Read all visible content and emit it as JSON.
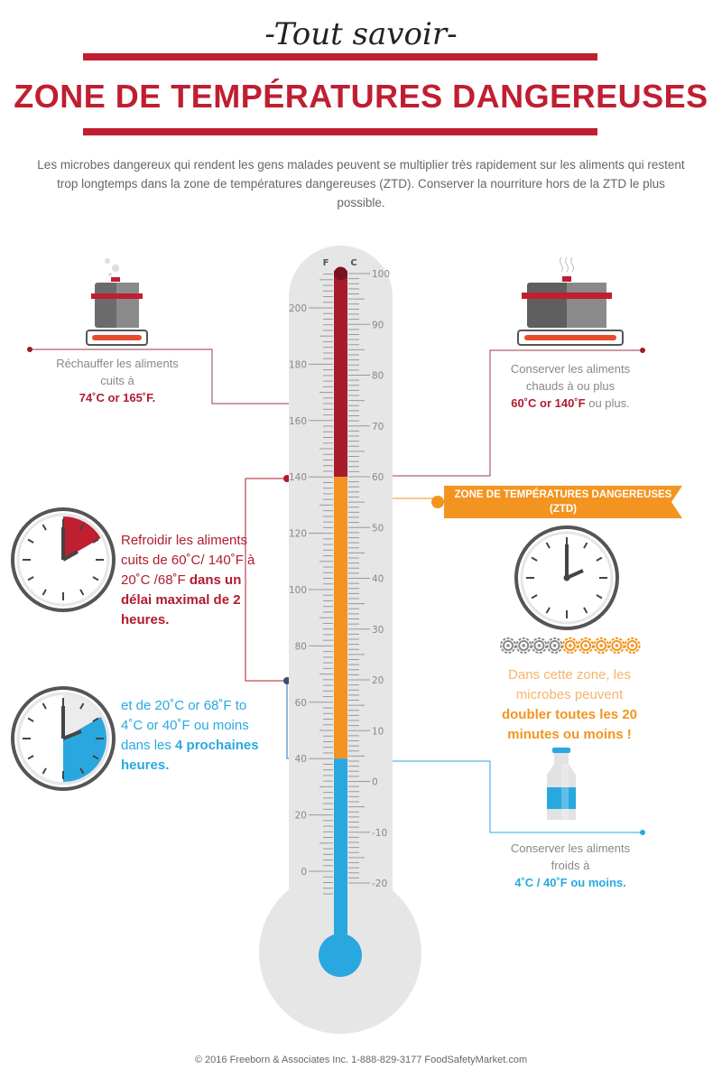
{
  "header": {
    "script_title": "-Tout savoir-",
    "title": "ZONE DE TEMPÉRATURES DANGEREUSES",
    "intro": "Les microbes dangereux qui rendent les gens malades peuvent se multiplier très rapidement sur les aliments qui restent trop longtemps dans la zone de températures dangereuses (ZTD).  Conserver la nourriture hors de la ZTD le plus possible."
  },
  "thermometer": {
    "f_label": "F",
    "c_label": "C",
    "f_ticks": [
      0,
      20,
      40,
      60,
      80,
      100,
      120,
      140,
      160,
      180,
      200
    ],
    "c_ticks": [
      -20,
      -10,
      0,
      10,
      20,
      30,
      40,
      50,
      60,
      70,
      80,
      90,
      100
    ],
    "zones": [
      {
        "name": "hot",
        "from_f": 140,
        "to_f": 212,
        "color": "#b01c2e"
      },
      {
        "name": "danger",
        "from_f": 40,
        "to_f": 140,
        "color": "#f39420"
      },
      {
        "name": "cold",
        "from_f": -10,
        "to_f": 40,
        "color": "#29a8e0"
      }
    ]
  },
  "reheat": {
    "line1": "Réchauffer les aliments cuits à",
    "value": "74˚C or 165˚F."
  },
  "hot_hold": {
    "line1": "Conserver les aliments chauds à ou plus",
    "value": "60˚C or 140˚F",
    "suffix": " ou plus."
  },
  "cool1": {
    "text": "Refroidir les aliments cuits de 60˚C/ 140˚F à 20˚C /68˚F ",
    "bold": "dans un délai maximal de 2 heures."
  },
  "cool2": {
    "text": "et de  20˚C or 68˚F to 4˚C or 40˚F ou moins dans les ",
    "bold": "4 prochaines heures."
  },
  "danger_zone": {
    "banner": "ZONE DE TEMPÉRATURES DANGEREUSES (ZTD)",
    "text": "Dans cette zone, les microbes peuvent ",
    "bold": "doubler toutes les 20 minutes ou moins !",
    "microbes_gray": 4,
    "microbes_orange": 5
  },
  "cold_hold": {
    "line1": "Conserver les aliments froids à",
    "value": "4˚C / 40˚F ou moins."
  },
  "colors": {
    "red": "#c01e31",
    "orange": "#f39420",
    "blue": "#29a8e0",
    "gray": "#888888"
  },
  "footer": "© 2016 Freeborn & Associates Inc. 1-888-829-3177 FoodSafetyMarket.com"
}
